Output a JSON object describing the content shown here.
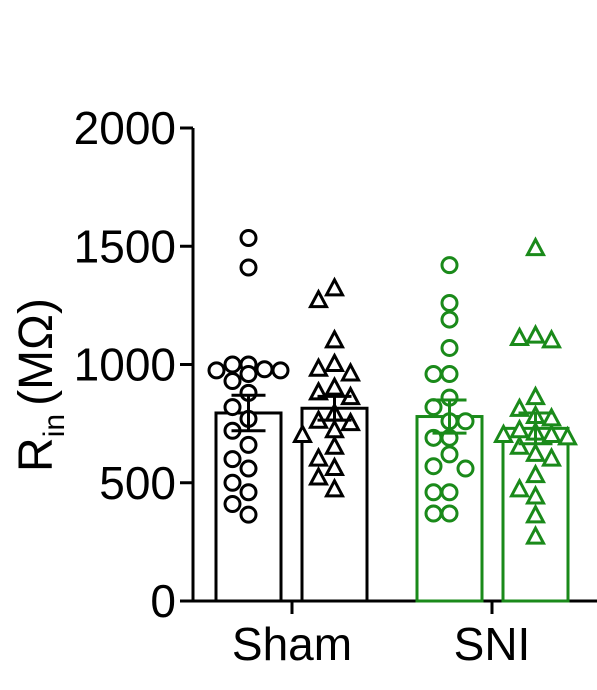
{
  "chart_data": {
    "type": "bar",
    "title": "",
    "ylabel_main": "R",
    "ylabel_sub": "in",
    "ylabel_unit": "(MΩ)",
    "ylim": [
      0,
      2000
    ],
    "yticks": [
      "0",
      "500",
      "1000",
      "1500",
      "2000"
    ],
    "ytick_values": [
      0,
      500,
      1000,
      1500,
      2000
    ],
    "grid": false,
    "groups": [
      "Sham",
      "SNI"
    ],
    "colors": {
      "Sham": "#000000",
      "SNI": "#1a8a1a"
    },
    "bars": [
      {
        "group": "Sham",
        "marker": "circle",
        "mean": 795,
        "sem": 75,
        "points": [
          1535,
          1410,
          1000,
          1000,
          980,
          975,
          975,
          960,
          930,
          880,
          820,
          770,
          720,
          660,
          600,
          560,
          500,
          460,
          410,
          365
        ]
      },
      {
        "group": "Sham",
        "marker": "triangle",
        "mean": 815,
        "sem": 50,
        "points": [
          1320,
          1270,
          1100,
          1000,
          980,
          960,
          900,
          880,
          860,
          790,
          760,
          750,
          720,
          700,
          650,
          600,
          560,
          520,
          470
        ]
      },
      {
        "group": "SNI",
        "marker": "circle",
        "mean": 780,
        "sem": 70,
        "points": [
          1420,
          1260,
          1190,
          1070,
          960,
          960,
          860,
          820,
          760,
          760,
          690,
          690,
          620,
          570,
          560,
          460,
          460,
          370,
          370
        ]
      },
      {
        "group": "SNI",
        "marker": "triangle",
        "mean": 730,
        "sem": 65,
        "points": [
          1490,
          1120,
          1110,
          1100,
          860,
          810,
          780,
          770,
          720,
          710,
          700,
          700,
          690,
          650,
          620,
          600,
          530,
          470,
          440,
          360,
          270
        ]
      }
    ]
  }
}
